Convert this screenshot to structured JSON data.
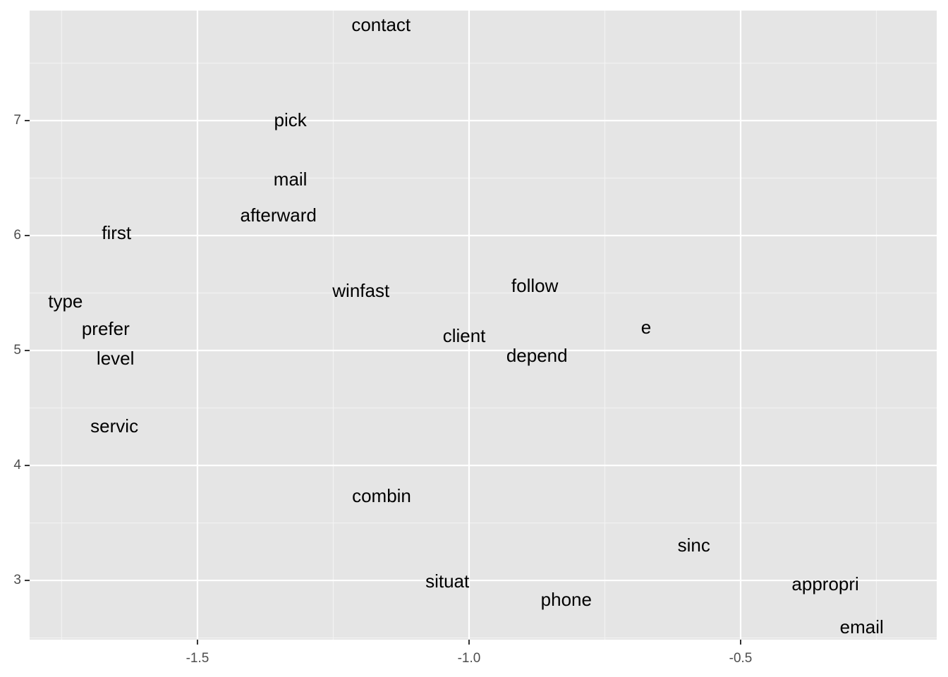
{
  "chart_data": {
    "type": "text-scatter",
    "labels": [
      "contact",
      "pick",
      "mail",
      "afterward",
      "first",
      "type",
      "prefer",
      "level",
      "servic",
      "winfast",
      "follow",
      "client",
      "depend",
      "e",
      "combin",
      "sinc",
      "situat",
      "phone",
      "appropri",
      "email"
    ],
    "x": [
      -1.162,
      -1.329,
      -1.329,
      -1.351,
      -1.649,
      -1.743,
      -1.669,
      -1.651,
      -1.653,
      -1.199,
      -0.879,
      -1.009,
      -0.875,
      -0.674,
      -1.161,
      -0.586,
      -1.04,
      -0.821,
      -0.344,
      -0.277
    ],
    "y": [
      7.822,
      6.994,
      6.479,
      6.166,
      6.012,
      5.417,
      5.178,
      4.92,
      4.331,
      5.509,
      5.552,
      5.117,
      4.945,
      5.19,
      3.724,
      3.294,
      2.982,
      2.822,
      2.957,
      2.583
    ],
    "xlim": [
      -1.809,
      -0.139
    ],
    "ylim": [
      2.485,
      7.957
    ],
    "xticks": [
      -1.5,
      {
        "value": -1,
        "label": "-1.0"
      },
      -0.5
    ],
    "yticks": [
      3,
      4,
      5,
      6,
      7
    ],
    "grid": true
  }
}
